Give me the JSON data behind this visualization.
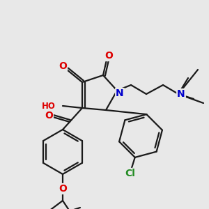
{
  "background_color": "#e8e8e8",
  "bond_color": "#1a1a1a",
  "atom_colors": {
    "O": "#dd0000",
    "N": "#0000cc",
    "Cl": "#228b22",
    "H": "#888888",
    "C": "#1a1a1a"
  },
  "figsize": [
    3.0,
    3.0
  ],
  "dpi": 100
}
